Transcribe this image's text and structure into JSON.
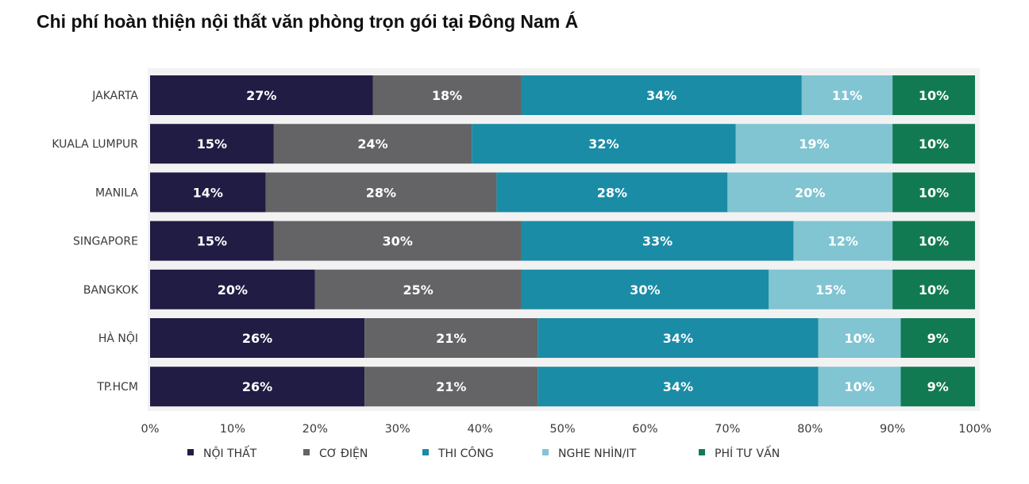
{
  "title": "Chi phí hoàn thiện nội thất văn phòng trọn gói tại Đông Nam Á",
  "chart_data": {
    "type": "bar",
    "orientation": "horizontal",
    "stacked": true,
    "title": "Chi phí hoàn thiện nội thất văn phòng trọn gói tại Đông Nam Á",
    "categories": [
      "JAKARTA",
      "KUALA LUMPUR",
      "MANILA",
      "SINGAPORE",
      "BANGKOK",
      "HÀ NỘI",
      "TP.HCM"
    ],
    "series": [
      {
        "name": "NỘI THẤT",
        "color": "#201c44",
        "label_color": "#ffffff",
        "values": [
          27,
          15,
          14,
          15,
          20,
          26,
          26
        ]
      },
      {
        "name": "CƠ ĐIỆN",
        "color": "#646466",
        "label_color": "#ffffff",
        "values": [
          18,
          24,
          28,
          30,
          25,
          21,
          21
        ]
      },
      {
        "name": "THI CÔNG",
        "color": "#1b8ca6",
        "label_color": "#ffffff",
        "values": [
          34,
          32,
          28,
          33,
          30,
          34,
          34
        ]
      },
      {
        "name": "NGHE NHÌN/IT",
        "color": "#81c4d2",
        "label_color": "#ffffff",
        "values": [
          11,
          19,
          20,
          12,
          15,
          10,
          10
        ]
      },
      {
        "name": "PHÍ TƯ VẤN",
        "color": "#127a52",
        "label_color": "#ffffff",
        "values": [
          10,
          10,
          10,
          10,
          10,
          9,
          9
        ]
      }
    ],
    "xlim": [
      0,
      100
    ],
    "xticks": [
      "0%",
      "10%",
      "20%",
      "30%",
      "40%",
      "50%",
      "60%",
      "70%",
      "80%",
      "90%",
      "100%"
    ],
    "value_suffix": "%",
    "grid": false,
    "legend_position": "bottom"
  }
}
